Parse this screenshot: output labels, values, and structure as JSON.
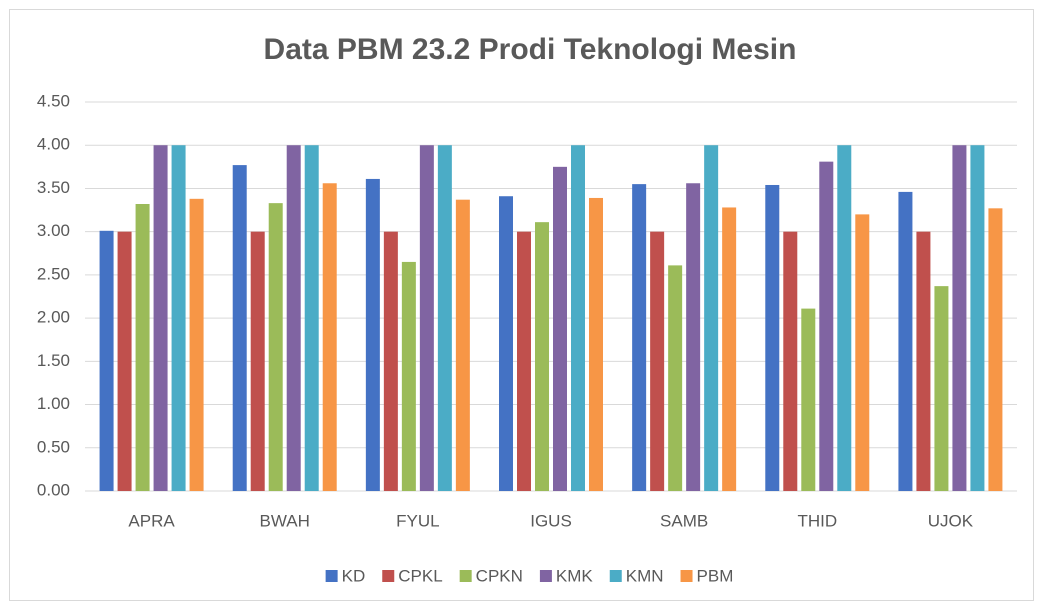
{
  "chart_data": {
    "type": "bar",
    "title": "Data PBM 23.2 Prodi Teknologi Mesin",
    "categories": [
      "APRA",
      "BWAH",
      "FYUL",
      "IGUS",
      "SAMB",
      "THID",
      "UJOK"
    ],
    "series": [
      {
        "name": "KD",
        "color": "#4472c4",
        "values": [
          3.01,
          3.77,
          3.61,
          3.41,
          3.55,
          3.54,
          3.46
        ]
      },
      {
        "name": "CPKL",
        "color": "#c0504d",
        "values": [
          3.0,
          3.0,
          3.0,
          3.0,
          3.0,
          3.0,
          3.0
        ]
      },
      {
        "name": "CPKN",
        "color": "#9bbb59",
        "values": [
          3.32,
          3.33,
          2.65,
          3.11,
          2.61,
          2.11,
          2.37
        ]
      },
      {
        "name": "KMK",
        "color": "#8064a2",
        "values": [
          4.0,
          4.0,
          4.0,
          3.75,
          3.56,
          3.81,
          4.0
        ]
      },
      {
        "name": "KMN",
        "color": "#4bacc6",
        "values": [
          4.0,
          4.0,
          4.0,
          4.0,
          4.0,
          4.0,
          4.0
        ]
      },
      {
        "name": "PBM",
        "color": "#f79646",
        "values": [
          3.38,
          3.56,
          3.37,
          3.39,
          3.28,
          3.2,
          3.27
        ]
      }
    ],
    "ylim": [
      0,
      4.5
    ],
    "yticks": [
      {
        "value": 0,
        "label": "0.00"
      },
      {
        "value": 0.5,
        "label": "0.50"
      },
      {
        "value": 1,
        "label": "1.00"
      },
      {
        "value": 1.5,
        "label": "1.50"
      },
      {
        "value": 2,
        "label": "2.00"
      },
      {
        "value": 2.5,
        "label": "2.50"
      },
      {
        "value": 3,
        "label": "3.00"
      },
      {
        "value": 3.5,
        "label": "3.50"
      },
      {
        "value": 4,
        "label": "4.00"
      },
      {
        "value": 4.5,
        "label": "4.50"
      }
    ],
    "grid": true,
    "legend": "bottom"
  }
}
